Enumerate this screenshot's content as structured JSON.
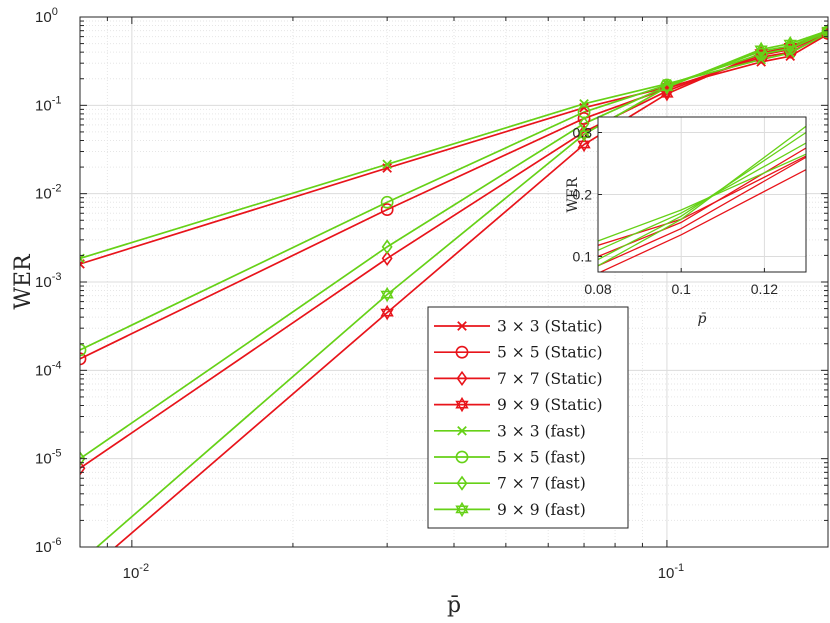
{
  "chart_data": [
    {
      "type": "line",
      "title": "",
      "xlabel": "p̄",
      "ylabel": "WER",
      "xscale": "log",
      "yscale": "log",
      "xlim": [
        0.008,
        0.2
      ],
      "ylim": [
        1e-06,
        1
      ],
      "grid": "major and minor",
      "legend_position": "lower-right",
      "x_ticks": [
        {
          "value": 0.01,
          "base": "10",
          "exp": "-2"
        },
        {
          "value": 0.1,
          "base": "10",
          "exp": "-1"
        }
      ],
      "y_ticks": [
        {
          "value": 1e-06,
          "base": "10",
          "exp": "-6"
        },
        {
          "value": 1e-05,
          "base": "10",
          "exp": "-5"
        },
        {
          "value": 0.0001,
          "base": "10",
          "exp": "-4"
        },
        {
          "value": 0.001,
          "base": "10",
          "exp": "-3"
        },
        {
          "value": 0.01,
          "base": "10",
          "exp": "-2"
        },
        {
          "value": 0.1,
          "base": "10",
          "exp": "-1"
        },
        {
          "value": 1,
          "base": "10",
          "exp": "0"
        }
      ],
      "colors": {
        "static": "#e8141b",
        "fast": "#66d117"
      },
      "series": [
        {
          "name": "3 × 3 (Static)",
          "color": "static",
          "marker": "x",
          "x": [
            0.008,
            0.03,
            0.07,
            0.1,
            0.15,
            0.17,
            0.2
          ],
          "y": [
            0.0016,
            0.0195,
            0.094,
            0.16,
            0.31,
            0.36,
            0.64
          ]
        },
        {
          "name": "5 × 5 (Static)",
          "color": "static",
          "marker": "circle",
          "x": [
            0.008,
            0.03,
            0.07,
            0.1,
            0.15,
            0.17,
            0.2
          ],
          "y": [
            0.000135,
            0.0066,
            0.071,
            0.155,
            0.35,
            0.4,
            0.65
          ]
        },
        {
          "name": "7 × 7 (Static)",
          "color": "static",
          "marker": "diamond",
          "x": [
            0.008,
            0.03,
            0.07,
            0.1,
            0.15,
            0.17,
            0.2
          ],
          "y": [
            7.8e-06,
            0.00185,
            0.05,
            0.145,
            0.37,
            0.43,
            0.66
          ]
        },
        {
          "name": "9 × 9 (Static)",
          "color": "static",
          "marker": "hexagram",
          "x": [
            0.008,
            0.03,
            0.07,
            0.1,
            0.15,
            0.17,
            0.2
          ],
          "y": [
            4.5e-07,
            0.00045,
            0.036,
            0.135,
            0.39,
            0.46,
            0.67
          ]
        },
        {
          "name": "3 × 3 (fast)",
          "color": "fast",
          "marker": "x",
          "x": [
            0.008,
            0.03,
            0.07,
            0.1,
            0.15,
            0.17,
            0.2
          ],
          "y": [
            0.00185,
            0.0215,
            0.104,
            0.175,
            0.33,
            0.39,
            0.66
          ]
        },
        {
          "name": "5 × 5 (fast)",
          "color": "fast",
          "marker": "circle",
          "x": [
            0.008,
            0.03,
            0.07,
            0.1,
            0.15,
            0.17,
            0.2
          ],
          "y": [
            0.00017,
            0.008,
            0.084,
            0.17,
            0.38,
            0.44,
            0.68
          ]
        },
        {
          "name": "7 × 7 (fast)",
          "color": "fast",
          "marker": "diamond",
          "x": [
            0.008,
            0.03,
            0.07,
            0.1,
            0.15,
            0.17,
            0.2
          ],
          "y": [
            1e-05,
            0.0025,
            0.062,
            0.165,
            0.41,
            0.47,
            0.69
          ]
        },
        {
          "name": "9 × 9 (fast)",
          "color": "fast",
          "marker": "hexagram",
          "x": [
            0.008,
            0.03,
            0.07,
            0.1,
            0.15,
            0.17,
            0.2
          ],
          "y": [
            6.8e-07,
            0.00072,
            0.047,
            0.16,
            0.43,
            0.5,
            0.7
          ]
        }
      ]
    },
    {
      "type": "line",
      "role": "inset",
      "title": "",
      "xlabel": "p̄",
      "ylabel": "WER",
      "xscale": "linear",
      "yscale": "linear",
      "xlim": [
        0.08,
        0.13
      ],
      "ylim": [
        0.075,
        0.325
      ],
      "x_ticks": [
        {
          "value": 0.08,
          "label": "0.08"
        },
        {
          "value": 0.1,
          "label": "0.1"
        },
        {
          "value": 0.12,
          "label": "0.12"
        }
      ],
      "y_ticks": [
        {
          "value": 0.1,
          "label": "0.1"
        },
        {
          "value": 0.2,
          "label": "0.2"
        },
        {
          "value": 0.3,
          "label": "0.3"
        }
      ],
      "grid": "major",
      "series": [
        {
          "color": "static",
          "x": [
            0.08,
            0.1,
            0.13
          ],
          "y": [
            0.118,
            0.16,
            0.262
          ]
        },
        {
          "color": "static",
          "x": [
            0.08,
            0.1,
            0.13
          ],
          "y": [
            0.1,
            0.155,
            0.275
          ]
        },
        {
          "color": "static",
          "x": [
            0.08,
            0.1,
            0.13
          ],
          "y": [
            0.085,
            0.145,
            0.26
          ]
        },
        {
          "color": "static",
          "x": [
            0.08,
            0.1,
            0.13
          ],
          "y": [
            0.073,
            0.135,
            0.24
          ]
        },
        {
          "color": "fast",
          "x": [
            0.08,
            0.1,
            0.13
          ],
          "y": [
            0.125,
            0.175,
            0.265
          ]
        },
        {
          "color": "fast",
          "x": [
            0.08,
            0.1,
            0.13
          ],
          "y": [
            0.11,
            0.17,
            0.283
          ]
        },
        {
          "color": "fast",
          "x": [
            0.08,
            0.1,
            0.13
          ],
          "y": [
            0.095,
            0.165,
            0.3
          ]
        },
        {
          "color": "fast",
          "x": [
            0.08,
            0.1,
            0.13
          ],
          "y": [
            0.085,
            0.16,
            0.31
          ]
        }
      ]
    }
  ]
}
